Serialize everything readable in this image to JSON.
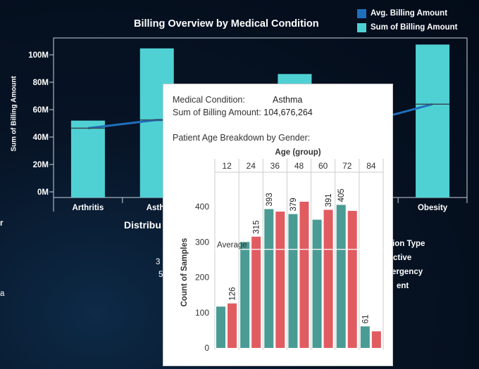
{
  "dashboard": {
    "title": "Billing Overview by Medical Condition",
    "legend": [
      {
        "label": "Avg. Billing Amount",
        "color": "#1f6fbd"
      },
      {
        "label": "Sum of Billing Amount",
        "color": "#4fd1d4"
      }
    ],
    "y_axis_label": "Sum of Billing Amount"
  },
  "background_fragments": {
    "section_title": "Distribu",
    "left_r": "r",
    "left_a": "a",
    "num_a": "3",
    "num_b": "5",
    "admission_type": "ion Type",
    "item1": "ctive",
    "item2": "ergency",
    "item3": "ent"
  },
  "chart_data": [
    {
      "type": "bar",
      "title": "Billing Overview by Medical Condition",
      "xlabel": "",
      "ylabel": "Sum of Billing Amount",
      "categories": [
        "Arthritis",
        "Asthma",
        "",
        "",
        "",
        "Obesity"
      ],
      "category_labels_visible": [
        "Arthritis",
        "Asthr",
        "",
        "",
        "",
        "Obesity"
      ],
      "y_ticks": [
        "0M",
        "20M",
        "40M",
        "60M",
        "80M",
        "100M"
      ],
      "ylim": [
        0,
        110
      ],
      "series": [
        {
          "name": "Sum of Billing Amount",
          "type": "bar",
          "color": "#4fd1d4",
          "values": [
            52,
            104.7,
            null,
            86,
            null,
            107.5
          ]
        },
        {
          "name": "Avg. Billing Amount",
          "type": "line",
          "color": "#1f6fbd",
          "values": [
            46.5,
            52.5,
            null,
            null,
            50.5,
            64
          ]
        }
      ],
      "grid": false
    },
    {
      "type": "bar",
      "title": "Patient Age Breakdown by Gender:",
      "xlabel": "Age (group)",
      "ylabel": "Count of Samples",
      "categories": [
        "12",
        "24",
        "36",
        "48",
        "60",
        "72",
        "84"
      ],
      "y_ticks": [
        "0",
        "100",
        "200",
        "300",
        "400"
      ],
      "ylim": [
        0,
        430
      ],
      "reference_line": {
        "label": "Average",
        "value": 279
      },
      "series": [
        {
          "color": "#4a9b94",
          "values": [
            117,
            300,
            393,
            379,
            363,
            405,
            61
          ]
        },
        {
          "color": "#e05c61",
          "values": [
            126,
            315,
            386,
            414,
            391,
            388,
            47
          ]
        }
      ],
      "data_labels": [
        {
          "category": "12",
          "series": 1,
          "text": "126"
        },
        {
          "category": "24",
          "series": 1,
          "text": "315"
        },
        {
          "category": "36",
          "series": 0,
          "text": "393"
        },
        {
          "category": "48",
          "series": 0,
          "text": "379"
        },
        {
          "category": "60",
          "series": 1,
          "text": "391"
        },
        {
          "category": "72",
          "series": 0,
          "text": "405"
        },
        {
          "category": "84",
          "series": 0,
          "text": "61"
        }
      ]
    }
  ],
  "tooltip": {
    "condition_key": "Medical Condition:",
    "condition_value": "Asthma",
    "sum_key": "Sum of Billing Amount:",
    "sum_value": "104,676,264",
    "breakdown_title": "Patient Age Breakdown by Gender:",
    "age_group_header": "Age (group)",
    "y_axis_label": "Count of Samples",
    "average_label": "Average"
  }
}
